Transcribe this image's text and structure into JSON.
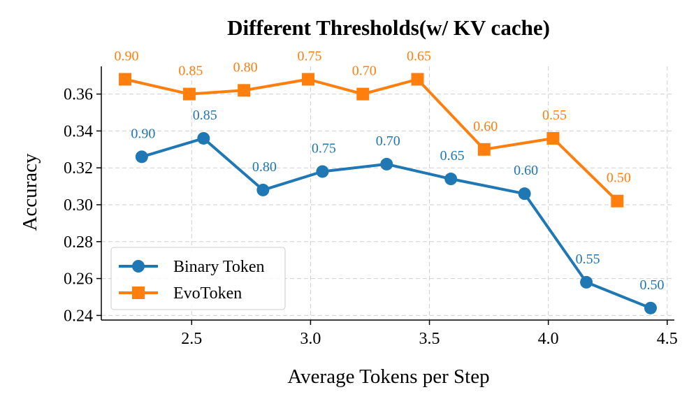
{
  "chart_data": {
    "type": "line",
    "title": "Different Thresholds(w/ KV cache)",
    "xlabel": "Average Tokens per Step",
    "ylabel": "Accuracy",
    "xlim": [
      2.12,
      4.53
    ],
    "ylim": [
      0.2375,
      0.375
    ],
    "xticks": [
      2.5,
      3.0,
      3.5,
      4.0,
      4.5
    ],
    "xtick_labels": [
      "2.5",
      "3.0",
      "3.5",
      "4.0",
      "4.5"
    ],
    "yticks": [
      0.24,
      0.26,
      0.28,
      0.3,
      0.32,
      0.34,
      0.36
    ],
    "ytick_labels": [
      "0.24",
      "0.26",
      "0.28",
      "0.30",
      "0.32",
      "0.34",
      "0.36"
    ],
    "grid": true,
    "legend_position": "lower-left",
    "series": [
      {
        "name": "Binary Token",
        "color": "#1f77b4",
        "marker": "circle",
        "x": [
          2.29,
          2.55,
          2.8,
          3.05,
          3.32,
          3.59,
          3.9,
          4.16,
          4.43
        ],
        "y": [
          0.326,
          0.336,
          0.308,
          0.318,
          0.322,
          0.314,
          0.306,
          0.258,
          0.244
        ],
        "labels": [
          "0.90",
          "0.85",
          "0.80",
          "0.75",
          "0.70",
          "0.65",
          "0.60",
          "0.55",
          "0.50"
        ]
      },
      {
        "name": "EvoToken",
        "color": "#ff7f0e",
        "marker": "square",
        "x": [
          2.22,
          2.49,
          2.72,
          2.99,
          3.22,
          3.45,
          3.73,
          4.02,
          4.29
        ],
        "y": [
          0.368,
          0.36,
          0.362,
          0.368,
          0.36,
          0.368,
          0.33,
          0.336,
          0.302
        ],
        "labels": [
          "0.90",
          "0.85",
          "0.80",
          "0.75",
          "0.70",
          "0.65",
          "0.60",
          "0.55",
          "0.50"
        ]
      }
    ]
  }
}
